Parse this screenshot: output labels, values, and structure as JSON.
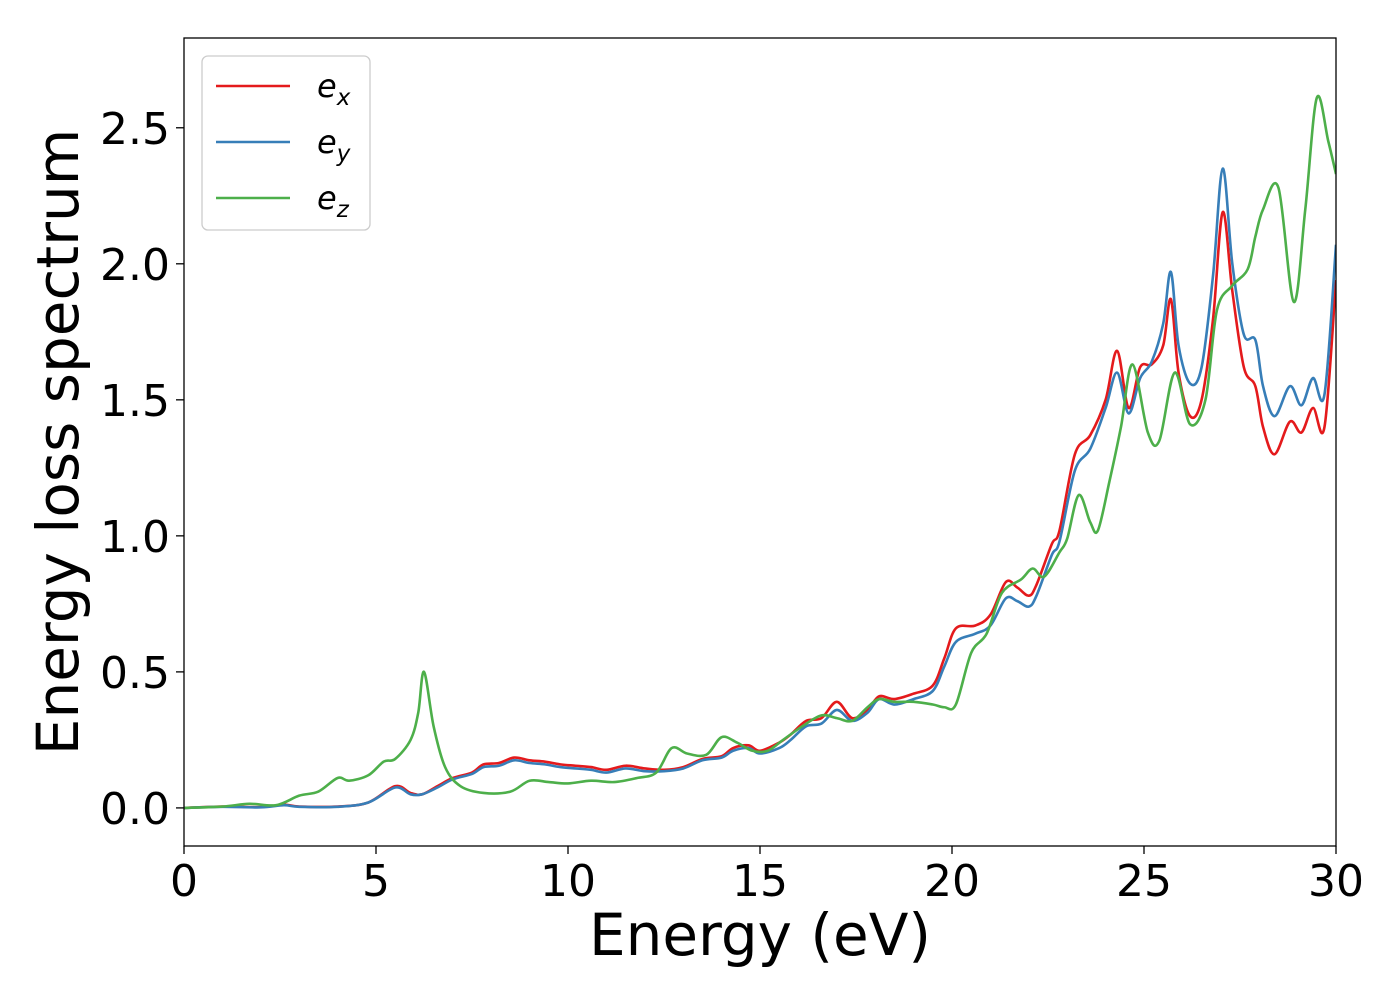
{
  "chart_data": {
    "type": "line",
    "xlabel": "Energy (eV)",
    "ylabel": "Energy loss spectrum",
    "xlim": [
      0,
      30
    ],
    "ylim": [
      -0.14,
      2.83
    ],
    "xticks": [
      "0",
      "5",
      "10",
      "15",
      "20",
      "25",
      "30"
    ],
    "yticks": [
      "0.0",
      "0.5",
      "1.0",
      "1.5",
      "2.0",
      "2.5"
    ],
    "grid": false,
    "legend_position": "top-left",
    "series": [
      {
        "name": "e",
        "subscript": "x",
        "color": "#e41a1c",
        "points": [
          [
            0,
            0
          ],
          [
            1,
            0.005
          ],
          [
            2,
            0.003
          ],
          [
            2.6,
            0.012
          ],
          [
            3,
            0.005
          ],
          [
            4,
            0.005
          ],
          [
            4.8,
            0.02
          ],
          [
            5.5,
            0.08
          ],
          [
            5.9,
            0.055
          ],
          [
            6.2,
            0.05
          ],
          [
            6.6,
            0.08
          ],
          [
            7,
            0.11
          ],
          [
            7.5,
            0.13
          ],
          [
            7.8,
            0.16
          ],
          [
            8.2,
            0.165
          ],
          [
            8.6,
            0.185
          ],
          [
            9,
            0.175
          ],
          [
            9.4,
            0.17
          ],
          [
            9.8,
            0.16
          ],
          [
            10.2,
            0.155
          ],
          [
            10.6,
            0.15
          ],
          [
            11,
            0.14
          ],
          [
            11.5,
            0.155
          ],
          [
            12,
            0.145
          ],
          [
            12.5,
            0.14
          ],
          [
            13,
            0.15
          ],
          [
            13.5,
            0.18
          ],
          [
            14,
            0.19
          ],
          [
            14.3,
            0.22
          ],
          [
            14.7,
            0.23
          ],
          [
            15,
            0.21
          ],
          [
            15.5,
            0.24
          ],
          [
            15.8,
            0.27
          ],
          [
            16.2,
            0.32
          ],
          [
            16.6,
            0.33
          ],
          [
            17,
            0.39
          ],
          [
            17.4,
            0.33
          ],
          [
            17.8,
            0.36
          ],
          [
            18.1,
            0.41
          ],
          [
            18.5,
            0.4
          ],
          [
            19,
            0.42
          ],
          [
            19.5,
            0.45
          ],
          [
            19.8,
            0.55
          ],
          [
            20.1,
            0.66
          ],
          [
            20.6,
            0.67
          ],
          [
            21,
            0.71
          ],
          [
            21.4,
            0.83
          ],
          [
            21.7,
            0.81
          ],
          [
            22,
            0.78
          ],
          [
            22.2,
            0.82
          ],
          [
            22.6,
            0.97
          ],
          [
            22.8,
            1.02
          ],
          [
            23.2,
            1.3
          ],
          [
            23.6,
            1.37
          ],
          [
            24,
            1.5
          ],
          [
            24.3,
            1.68
          ],
          [
            24.6,
            1.47
          ],
          [
            24.9,
            1.62
          ],
          [
            25.2,
            1.63
          ],
          [
            25.5,
            1.7
          ],
          [
            25.7,
            1.87
          ],
          [
            25.9,
            1.6
          ],
          [
            26.2,
            1.44
          ],
          [
            26.5,
            1.5
          ],
          [
            26.8,
            1.8
          ],
          [
            27.05,
            2.19
          ],
          [
            27.3,
            1.9
          ],
          [
            27.6,
            1.62
          ],
          [
            27.9,
            1.55
          ],
          [
            28.1,
            1.4
          ],
          [
            28.4,
            1.3
          ],
          [
            28.8,
            1.42
          ],
          [
            29.1,
            1.38
          ],
          [
            29.4,
            1.47
          ],
          [
            29.7,
            1.4
          ],
          [
            30,
            1.94
          ]
        ]
      },
      {
        "name": "e",
        "subscript": "y",
        "color": "#377eb8",
        "points": [
          [
            0,
            0
          ],
          [
            1,
            0.004
          ],
          [
            2,
            0.002
          ],
          [
            2.6,
            0.01
          ],
          [
            3,
            0.004
          ],
          [
            4,
            0.004
          ],
          [
            4.8,
            0.02
          ],
          [
            5.5,
            0.075
          ],
          [
            5.9,
            0.05
          ],
          [
            6.2,
            0.05
          ],
          [
            6.6,
            0.075
          ],
          [
            7,
            0.105
          ],
          [
            7.5,
            0.125
          ],
          [
            7.8,
            0.15
          ],
          [
            8.2,
            0.155
          ],
          [
            8.6,
            0.175
          ],
          [
            9,
            0.165
          ],
          [
            9.4,
            0.16
          ],
          [
            9.8,
            0.15
          ],
          [
            10.2,
            0.145
          ],
          [
            10.6,
            0.14
          ],
          [
            11,
            0.13
          ],
          [
            11.5,
            0.145
          ],
          [
            12,
            0.135
          ],
          [
            12.5,
            0.135
          ],
          [
            13,
            0.145
          ],
          [
            13.5,
            0.175
          ],
          [
            14,
            0.185
          ],
          [
            14.3,
            0.21
          ],
          [
            14.7,
            0.22
          ],
          [
            15,
            0.2
          ],
          [
            15.5,
            0.22
          ],
          [
            15.8,
            0.25
          ],
          [
            16.2,
            0.3
          ],
          [
            16.6,
            0.31
          ],
          [
            17,
            0.36
          ],
          [
            17.4,
            0.32
          ],
          [
            17.8,
            0.35
          ],
          [
            18.1,
            0.4
          ],
          [
            18.5,
            0.38
          ],
          [
            19,
            0.4
          ],
          [
            19.5,
            0.43
          ],
          [
            19.8,
            0.52
          ],
          [
            20.1,
            0.61
          ],
          [
            20.6,
            0.64
          ],
          [
            21,
            0.67
          ],
          [
            21.4,
            0.77
          ],
          [
            21.7,
            0.76
          ],
          [
            22,
            0.74
          ],
          [
            22.2,
            0.78
          ],
          [
            22.6,
            0.93
          ],
          [
            22.8,
            0.98
          ],
          [
            23.2,
            1.24
          ],
          [
            23.6,
            1.32
          ],
          [
            24,
            1.47
          ],
          [
            24.3,
            1.6
          ],
          [
            24.6,
            1.45
          ],
          [
            24.9,
            1.58
          ],
          [
            25.2,
            1.64
          ],
          [
            25.5,
            1.78
          ],
          [
            25.7,
            1.97
          ],
          [
            25.9,
            1.7
          ],
          [
            26.2,
            1.56
          ],
          [
            26.5,
            1.62
          ],
          [
            26.8,
            1.96
          ],
          [
            27.05,
            2.35
          ],
          [
            27.3,
            2.0
          ],
          [
            27.6,
            1.74
          ],
          [
            27.9,
            1.72
          ],
          [
            28.1,
            1.55
          ],
          [
            28.4,
            1.44
          ],
          [
            28.8,
            1.55
          ],
          [
            29.1,
            1.48
          ],
          [
            29.4,
            1.58
          ],
          [
            29.7,
            1.52
          ],
          [
            30,
            2.07
          ]
        ]
      },
      {
        "name": "e",
        "subscript": "z",
        "color": "#4daf4a",
        "points": [
          [
            0,
            0
          ],
          [
            1,
            0.005
          ],
          [
            1.7,
            0.015
          ],
          [
            2.4,
            0.01
          ],
          [
            3,
            0.045
          ],
          [
            3.5,
            0.06
          ],
          [
            4,
            0.11
          ],
          [
            4.3,
            0.1
          ],
          [
            4.8,
            0.12
          ],
          [
            5.2,
            0.17
          ],
          [
            5.5,
            0.18
          ],
          [
            5.9,
            0.25
          ],
          [
            6.1,
            0.35
          ],
          [
            6.25,
            0.5
          ],
          [
            6.5,
            0.3
          ],
          [
            6.8,
            0.15
          ],
          [
            7.2,
            0.08
          ],
          [
            7.8,
            0.055
          ],
          [
            8.5,
            0.06
          ],
          [
            9,
            0.1
          ],
          [
            9.5,
            0.095
          ],
          [
            10,
            0.09
          ],
          [
            10.6,
            0.1
          ],
          [
            11.2,
            0.095
          ],
          [
            11.8,
            0.11
          ],
          [
            12.3,
            0.13
          ],
          [
            12.7,
            0.22
          ],
          [
            13.1,
            0.2
          ],
          [
            13.6,
            0.195
          ],
          [
            14,
            0.26
          ],
          [
            14.4,
            0.24
          ],
          [
            14.8,
            0.21
          ],
          [
            15.2,
            0.21
          ],
          [
            15.6,
            0.25
          ],
          [
            16.1,
            0.3
          ],
          [
            16.6,
            0.34
          ],
          [
            17,
            0.33
          ],
          [
            17.4,
            0.32
          ],
          [
            17.8,
            0.37
          ],
          [
            18.1,
            0.4
          ],
          [
            18.5,
            0.39
          ],
          [
            19,
            0.39
          ],
          [
            19.5,
            0.38
          ],
          [
            19.8,
            0.37
          ],
          [
            20.1,
            0.38
          ],
          [
            20.5,
            0.57
          ],
          [
            20.9,
            0.64
          ],
          [
            21.3,
            0.79
          ],
          [
            21.8,
            0.84
          ],
          [
            22.1,
            0.88
          ],
          [
            22.4,
            0.85
          ],
          [
            22.8,
            0.94
          ],
          [
            23,
            0.99
          ],
          [
            23.3,
            1.15
          ],
          [
            23.6,
            1.05
          ],
          [
            23.8,
            1.02
          ],
          [
            24.1,
            1.2
          ],
          [
            24.4,
            1.4
          ],
          [
            24.7,
            1.63
          ],
          [
            25.1,
            1.38
          ],
          [
            25.4,
            1.35
          ],
          [
            25.8,
            1.6
          ],
          [
            26.2,
            1.41
          ],
          [
            26.6,
            1.5
          ],
          [
            26.9,
            1.83
          ],
          [
            27.3,
            1.92
          ],
          [
            27.7,
            1.98
          ],
          [
            27.9,
            2.1
          ],
          [
            28.1,
            2.2
          ],
          [
            28.5,
            2.28
          ],
          [
            28.9,
            1.86
          ],
          [
            29.2,
            2.2
          ],
          [
            29.5,
            2.61
          ],
          [
            29.8,
            2.45
          ],
          [
            30,
            2.33
          ]
        ]
      }
    ]
  }
}
